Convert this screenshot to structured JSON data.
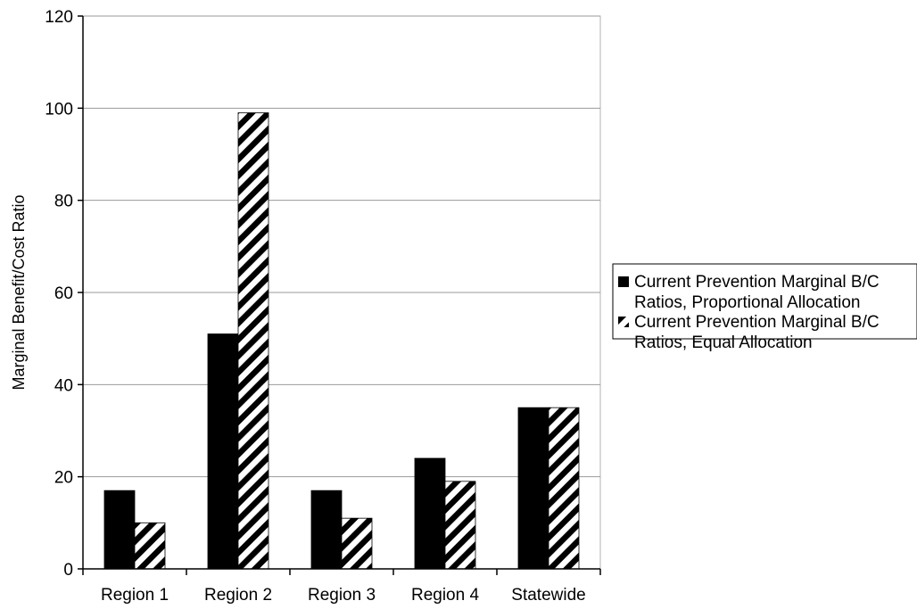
{
  "chart_data": {
    "type": "bar",
    "title": "",
    "xlabel": "",
    "ylabel": "Marginal Benefit/Cost Ratio",
    "categories": [
      "Region 1",
      "Region 2",
      "Region 3",
      "Region 4",
      "Statewide"
    ],
    "series": [
      {
        "name": "Current Prevention Marginal B/C Ratios, Proportional Allocation",
        "name_lines": [
          "Current Prevention Marginal B/C",
          "Ratios, Proportional Allocation"
        ],
        "fill": "solid-black",
        "values": [
          17,
          51,
          17,
          24,
          35
        ]
      },
      {
        "name": "Current Prevention Marginal B/C Ratios, Equal Allocation",
        "name_lines": [
          "Current Prevention Marginal B/C",
          "Ratios, Equal Allocation"
        ],
        "fill": "diagonal-stripes",
        "values": [
          10,
          99,
          11,
          19,
          35
        ]
      }
    ],
    "ylim": [
      0,
      120
    ],
    "yticks": [
      0,
      20,
      40,
      60,
      80,
      100,
      120
    ],
    "grid": true,
    "legend_position": "right"
  }
}
